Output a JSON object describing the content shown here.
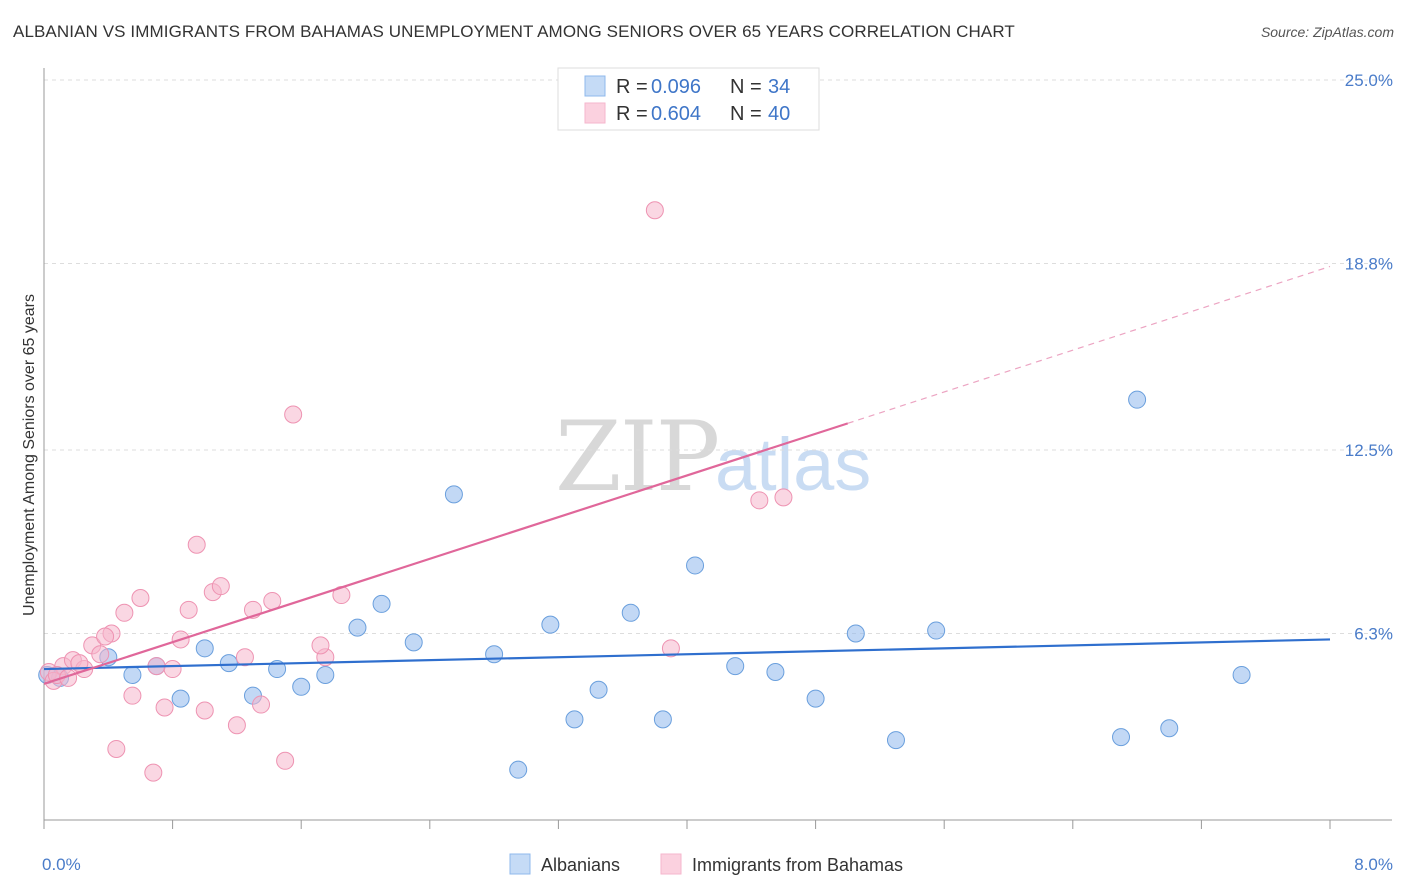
{
  "chart_data": {
    "type": "scatter",
    "title": "ALBANIAN VS IMMIGRANTS FROM BAHAMAS UNEMPLOYMENT AMONG SENIORS OVER 65 YEARS CORRELATION CHART",
    "source": "Source: ZipAtlas.com",
    "watermark": {
      "zip": "ZIP",
      "atlas": "atlas"
    },
    "xlabel": "",
    "ylabel": "Unemployment Among Seniors over 65 years",
    "xlim": [
      0,
      8
    ],
    "ylim": [
      0,
      25
    ],
    "x_tick_labels": {
      "min": "0.0%",
      "max": "8.0%"
    },
    "y_ticks": [
      {
        "value": 6.3,
        "label": "6.3%"
      },
      {
        "value": 12.5,
        "label": "12.5%"
      },
      {
        "value": 18.8,
        "label": "18.8%"
      },
      {
        "value": 25.0,
        "label": "25.0%"
      }
    ],
    "series": [
      {
        "name": "Albanians",
        "color": "#8fb8ec",
        "stroke": "#6a9fdd",
        "line_color": "#2f6fce",
        "R": "0.096",
        "N": "34",
        "trend": {
          "x0": 0.0,
          "y0": 5.1,
          "x1": 8.0,
          "y1": 6.1
        },
        "points": [
          [
            0.02,
            4.9
          ],
          [
            0.1,
            4.8
          ],
          [
            0.4,
            5.5
          ],
          [
            0.55,
            4.9
          ],
          [
            0.7,
            5.2
          ],
          [
            0.85,
            4.1
          ],
          [
            1.0,
            5.8
          ],
          [
            1.15,
            5.3
          ],
          [
            1.3,
            4.2
          ],
          [
            1.45,
            5.1
          ],
          [
            1.6,
            4.5
          ],
          [
            1.75,
            4.9
          ],
          [
            1.95,
            6.5
          ],
          [
            2.1,
            7.3
          ],
          [
            2.3,
            6.0
          ],
          [
            2.55,
            11.0
          ],
          [
            2.8,
            5.6
          ],
          [
            2.95,
            1.7
          ],
          [
            3.15,
            6.6
          ],
          [
            3.3,
            3.4
          ],
          [
            3.45,
            4.4
          ],
          [
            3.65,
            7.0
          ],
          [
            3.85,
            3.4
          ],
          [
            4.05,
            8.6
          ],
          [
            4.3,
            5.2
          ],
          [
            4.55,
            5.0
          ],
          [
            4.8,
            4.1
          ],
          [
            5.05,
            6.3
          ],
          [
            5.3,
            2.7
          ],
          [
            5.55,
            6.4
          ],
          [
            6.8,
            14.2
          ],
          [
            6.7,
            2.8
          ],
          [
            7.0,
            3.1
          ],
          [
            7.45,
            4.9
          ]
        ]
      },
      {
        "name": "Immigrants from Bahamas",
        "color": "#f6b6cc",
        "stroke": "#ee93b2",
        "line_color": "#e0679a",
        "R": "0.604",
        "N": "40",
        "trend": {
          "x0": 0.0,
          "y0": 4.6,
          "x1": 5.0,
          "y1": 13.4
        },
        "trend_ext": {
          "x0": 5.0,
          "y0": 13.4,
          "x1": 8.0,
          "y1": 18.7
        },
        "points": [
          [
            0.03,
            5.0
          ],
          [
            0.06,
            4.7
          ],
          [
            0.12,
            5.2
          ],
          [
            0.18,
            5.4
          ],
          [
            0.25,
            5.1
          ],
          [
            0.3,
            5.9
          ],
          [
            0.35,
            5.6
          ],
          [
            0.42,
            6.3
          ],
          [
            0.5,
            7.0
          ],
          [
            0.55,
            4.2
          ],
          [
            0.6,
            7.5
          ],
          [
            0.7,
            5.2
          ],
          [
            0.75,
            3.8
          ],
          [
            0.8,
            5.1
          ],
          [
            0.85,
            6.1
          ],
          [
            0.9,
            7.1
          ],
          [
            0.95,
            9.3
          ],
          [
            1.0,
            3.7
          ],
          [
            1.05,
            7.7
          ],
          [
            1.1,
            7.9
          ],
          [
            1.2,
            3.2
          ],
          [
            1.25,
            5.5
          ],
          [
            1.3,
            7.1
          ],
          [
            1.35,
            3.9
          ],
          [
            1.42,
            7.4
          ],
          [
            1.5,
            2.0
          ],
          [
            1.55,
            13.7
          ],
          [
            1.75,
            5.5
          ],
          [
            1.85,
            7.6
          ],
          [
            0.45,
            2.4
          ],
          [
            0.68,
            1.6
          ],
          [
            0.08,
            4.9
          ],
          [
            0.15,
            4.8
          ],
          [
            0.38,
            6.2
          ],
          [
            1.72,
            5.9
          ],
          [
            0.22,
            5.3
          ],
          [
            3.8,
            20.6
          ],
          [
            4.45,
            10.8
          ],
          [
            4.6,
            10.9
          ],
          [
            3.9,
            5.8
          ]
        ]
      }
    ]
  }
}
